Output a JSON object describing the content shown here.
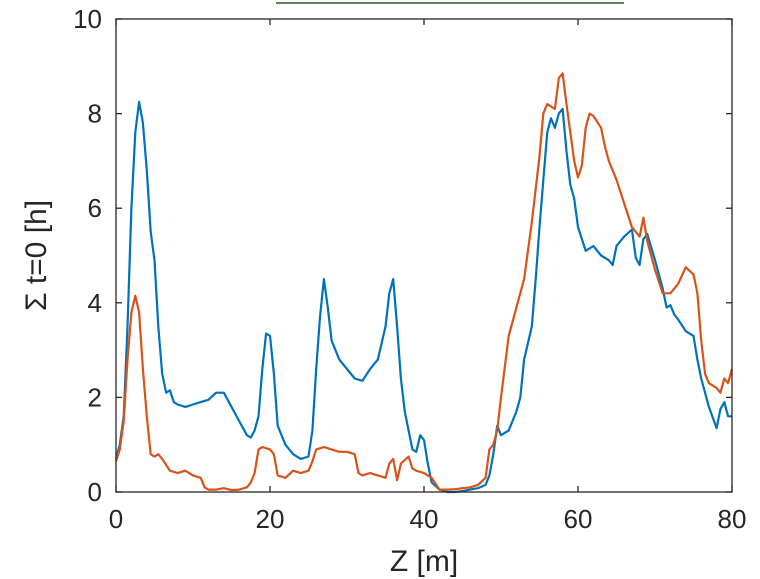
{
  "chart_data": {
    "type": "line",
    "title": "",
    "xlabel": "Z [m]",
    "ylabel": "Σ t=0 [h]",
    "xlim": [
      0,
      80
    ],
    "ylim": [
      0,
      10
    ],
    "xticks": [
      0,
      20,
      40,
      60,
      80
    ],
    "yticks": [
      0,
      2,
      4,
      6,
      8,
      10
    ],
    "grid": false,
    "legend": "none",
    "series": [
      {
        "color": "#0072BD",
        "points": [
          [
            0,
            0.7
          ],
          [
            0.5,
            1.0
          ],
          [
            1,
            1.6
          ],
          [
            1.5,
            3.5
          ],
          [
            2,
            6.0
          ],
          [
            2.5,
            7.6
          ],
          [
            3,
            8.25
          ],
          [
            3.5,
            7.8
          ],
          [
            4,
            6.8
          ],
          [
            4.5,
            5.5
          ],
          [
            5,
            4.9
          ],
          [
            5.5,
            3.5
          ],
          [
            6,
            2.5
          ],
          [
            6.5,
            2.1
          ],
          [
            7,
            2.15
          ],
          [
            7.5,
            1.9
          ],
          [
            8,
            1.85
          ],
          [
            9,
            1.8
          ],
          [
            10,
            1.85
          ],
          [
            11,
            1.9
          ],
          [
            12,
            1.95
          ],
          [
            13,
            2.1
          ],
          [
            14,
            2.1
          ],
          [
            15,
            1.8
          ],
          [
            16,
            1.5
          ],
          [
            17,
            1.2
          ],
          [
            17.5,
            1.15
          ],
          [
            18,
            1.3
          ],
          [
            18.5,
            1.6
          ],
          [
            19,
            2.6
          ],
          [
            19.5,
            3.35
          ],
          [
            20,
            3.3
          ],
          [
            20.5,
            2.5
          ],
          [
            21,
            1.4
          ],
          [
            22,
            1.0
          ],
          [
            23,
            0.8
          ],
          [
            24,
            0.7
          ],
          [
            25,
            0.75
          ],
          [
            25.5,
            1.3
          ],
          [
            26,
            2.6
          ],
          [
            26.5,
            3.7
          ],
          [
            27,
            4.5
          ],
          [
            27.5,
            3.9
          ],
          [
            28,
            3.2
          ],
          [
            29,
            2.8
          ],
          [
            30,
            2.6
          ],
          [
            31,
            2.4
          ],
          [
            32,
            2.35
          ],
          [
            33,
            2.6
          ],
          [
            34,
            2.8
          ],
          [
            35,
            3.5
          ],
          [
            35.5,
            4.2
          ],
          [
            36,
            4.5
          ],
          [
            36.5,
            3.5
          ],
          [
            37,
            2.4
          ],
          [
            37.5,
            1.7
          ],
          [
            38,
            1.3
          ],
          [
            38.5,
            0.9
          ],
          [
            39,
            0.85
          ],
          [
            39.5,
            1.2
          ],
          [
            40,
            1.1
          ],
          [
            40.5,
            0.6
          ],
          [
            41,
            0.2
          ],
          [
            42,
            0.05
          ],
          [
            43,
            0.0
          ],
          [
            44,
            0.0
          ],
          [
            45,
            0.02
          ],
          [
            46,
            0.05
          ],
          [
            47,
            0.08
          ],
          [
            48,
            0.15
          ],
          [
            48.5,
            0.35
          ],
          [
            49,
            0.8
          ],
          [
            49.5,
            1.4
          ],
          [
            50,
            1.2
          ],
          [
            51,
            1.3
          ],
          [
            52,
            1.7
          ],
          [
            52.5,
            2.0
          ],
          [
            53,
            2.8
          ],
          [
            54,
            3.5
          ],
          [
            54.5,
            4.5
          ],
          [
            55,
            5.6
          ],
          [
            56,
            7.6
          ],
          [
            56.5,
            7.9
          ],
          [
            57,
            7.7
          ],
          [
            57.5,
            8.0
          ],
          [
            58,
            8.1
          ],
          [
            58.5,
            7.2
          ],
          [
            59,
            6.5
          ],
          [
            59.5,
            6.2
          ],
          [
            60,
            5.6
          ],
          [
            61,
            5.1
          ],
          [
            62,
            5.2
          ],
          [
            63,
            5.0
          ],
          [
            64,
            4.9
          ],
          [
            64.5,
            4.8
          ],
          [
            65,
            5.2
          ],
          [
            66,
            5.4
          ],
          [
            67,
            5.55
          ],
          [
            67.5,
            4.95
          ],
          [
            68,
            4.8
          ],
          [
            68.5,
            5.35
          ],
          [
            69,
            5.45
          ],
          [
            70,
            4.9
          ],
          [
            71,
            4.3
          ],
          [
            71.5,
            3.9
          ],
          [
            72,
            3.95
          ],
          [
            72.5,
            3.75
          ],
          [
            73,
            3.65
          ],
          [
            74,
            3.4
          ],
          [
            75,
            3.3
          ],
          [
            75.5,
            2.8
          ],
          [
            76,
            2.4
          ],
          [
            77,
            1.8
          ],
          [
            78,
            1.35
          ],
          [
            78.5,
            1.75
          ],
          [
            79,
            1.9
          ],
          [
            79.5,
            1.6
          ],
          [
            80,
            1.6
          ]
        ]
      },
      {
        "color": "#D95319",
        "points": [
          [
            0,
            0.65
          ],
          [
            0.5,
            0.9
          ],
          [
            1,
            1.5
          ],
          [
            1.5,
            2.8
          ],
          [
            2,
            3.8
          ],
          [
            2.5,
            4.15
          ],
          [
            3,
            3.8
          ],
          [
            3.5,
            2.6
          ],
          [
            4,
            1.6
          ],
          [
            4.5,
            0.8
          ],
          [
            5,
            0.75
          ],
          [
            5.5,
            0.8
          ],
          [
            6,
            0.7
          ],
          [
            7,
            0.45
          ],
          [
            8,
            0.4
          ],
          [
            9,
            0.45
          ],
          [
            10,
            0.35
          ],
          [
            11,
            0.3
          ],
          [
            11.5,
            0.1
          ],
          [
            12,
            0.05
          ],
          [
            13,
            0.05
          ],
          [
            14,
            0.08
          ],
          [
            15,
            0.04
          ],
          [
            16,
            0.05
          ],
          [
            17,
            0.1
          ],
          [
            17.5,
            0.2
          ],
          [
            18,
            0.4
          ],
          [
            18.5,
            0.9
          ],
          [
            19,
            0.95
          ],
          [
            20,
            0.9
          ],
          [
            20.5,
            0.8
          ],
          [
            21,
            0.35
          ],
          [
            22,
            0.3
          ],
          [
            23,
            0.45
          ],
          [
            24,
            0.4
          ],
          [
            25,
            0.45
          ],
          [
            25.5,
            0.65
          ],
          [
            26,
            0.9
          ],
          [
            27,
            0.95
          ],
          [
            28,
            0.9
          ],
          [
            29,
            0.85
          ],
          [
            30,
            0.85
          ],
          [
            31,
            0.8
          ],
          [
            31.5,
            0.4
          ],
          [
            32,
            0.35
          ],
          [
            33,
            0.4
          ],
          [
            34,
            0.35
          ],
          [
            35,
            0.3
          ],
          [
            35.5,
            0.6
          ],
          [
            36,
            0.7
          ],
          [
            36.5,
            0.25
          ],
          [
            37,
            0.6
          ],
          [
            38,
            0.75
          ],
          [
            38.5,
            0.5
          ],
          [
            39,
            0.45
          ],
          [
            40,
            0.4
          ],
          [
            41,
            0.3
          ],
          [
            42,
            0.05
          ],
          [
            43,
            0.05
          ],
          [
            44,
            0.06
          ],
          [
            45,
            0.08
          ],
          [
            46,
            0.1
          ],
          [
            47,
            0.15
          ],
          [
            48,
            0.3
          ],
          [
            48.5,
            0.9
          ],
          [
            49,
            1.0
          ],
          [
            49.5,
            1.3
          ],
          [
            50,
            2.0
          ],
          [
            51,
            3.3
          ],
          [
            52,
            3.9
          ],
          [
            53,
            4.5
          ],
          [
            54,
            5.7
          ],
          [
            55,
            7.1
          ],
          [
            55.5,
            8.0
          ],
          [
            56,
            8.2
          ],
          [
            57,
            8.1
          ],
          [
            57.5,
            8.75
          ],
          [
            58,
            8.85
          ],
          [
            58.5,
            8.2
          ],
          [
            59,
            7.6
          ],
          [
            59.5,
            7.0
          ],
          [
            60,
            6.65
          ],
          [
            60.5,
            6.9
          ],
          [
            61,
            7.7
          ],
          [
            61.5,
            8.0
          ],
          [
            62,
            7.95
          ],
          [
            63,
            7.7
          ],
          [
            63.5,
            7.3
          ],
          [
            64,
            7.0
          ],
          [
            65,
            6.6
          ],
          [
            66,
            6.1
          ],
          [
            67,
            5.6
          ],
          [
            68,
            5.4
          ],
          [
            68.5,
            5.8
          ],
          [
            69,
            5.3
          ],
          [
            70,
            4.7
          ],
          [
            71,
            4.2
          ],
          [
            72,
            4.2
          ],
          [
            73,
            4.4
          ],
          [
            74,
            4.75
          ],
          [
            75,
            4.6
          ],
          [
            75.5,
            4.2
          ],
          [
            76,
            3.2
          ],
          [
            76.5,
            2.5
          ],
          [
            77,
            2.3
          ],
          [
            78,
            2.2
          ],
          [
            78.5,
            2.1
          ],
          [
            79,
            2.4
          ],
          [
            79.5,
            2.3
          ],
          [
            80,
            2.6
          ]
        ]
      }
    ]
  }
}
